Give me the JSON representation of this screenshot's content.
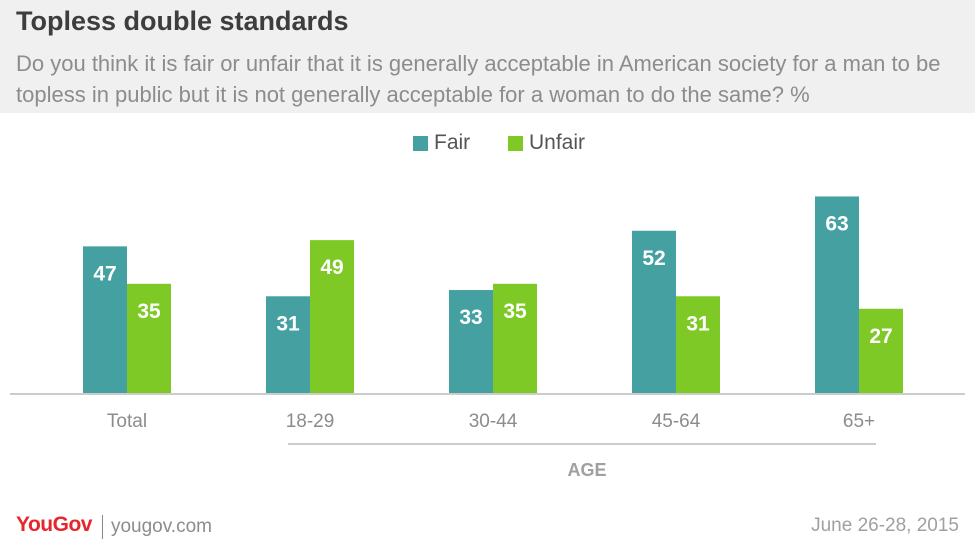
{
  "header": {
    "title": "Topless double standards",
    "subtitle": "Do you think it is fair or unfair that it is generally acceptable in American society for a man to be topless in public but it is not generally acceptable for a woman to do the same? %"
  },
  "colors": {
    "fair": "#45a0a2",
    "unfair": "#7ec925"
  },
  "chart_data": {
    "type": "bar",
    "categories": [
      "Total",
      "18-29",
      "30-44",
      "45-64",
      "65+"
    ],
    "series": [
      {
        "name": "Fair",
        "values": [
          47,
          31,
          33,
          52,
          63
        ]
      },
      {
        "name": "Unfair",
        "values": [
          35,
          49,
          35,
          31,
          27
        ]
      }
    ],
    "group_label": "AGE",
    "ylim": [
      0,
      70
    ],
    "grid": false,
    "legend": "top-center",
    "data_labels": true
  },
  "footer": {
    "logo": "YouGov",
    "site": "yougov.com",
    "date": "June 26-28, 2015"
  }
}
